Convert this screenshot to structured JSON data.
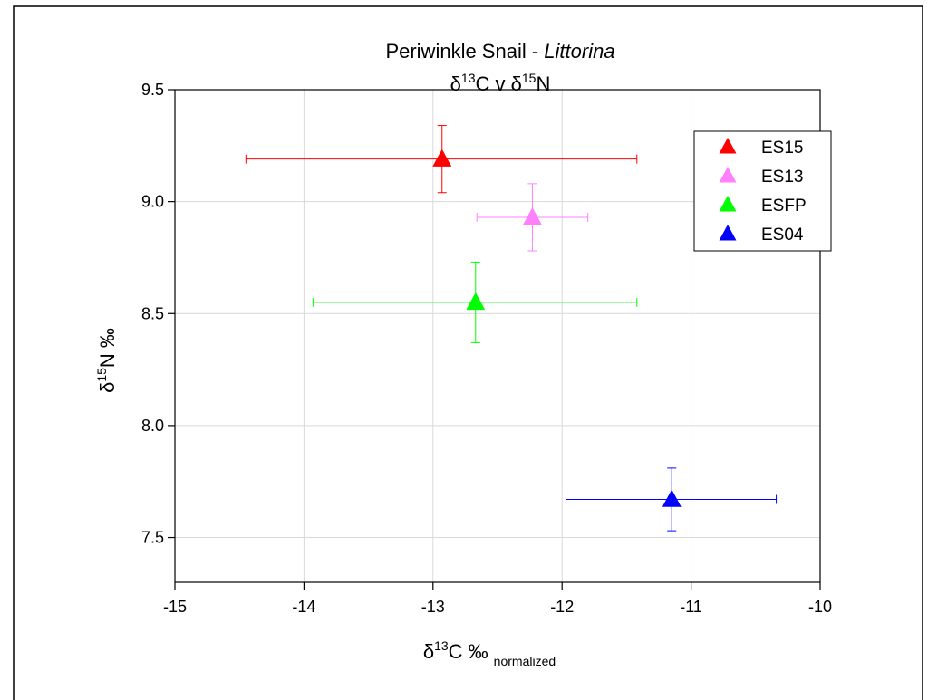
{
  "chart_data": {
    "type": "scatter",
    "title": {
      "line1_prefix": "Periwinkle Snail - ",
      "line1_italic": "Littorina",
      "line2_delta1": "δ",
      "line2_sup1": "13",
      "line2_mid": "C v ",
      "line2_delta2": "δ",
      "line2_sup2": "15",
      "line2_end": "N"
    },
    "xlabel": {
      "delta": "δ",
      "sup": "13",
      "main": "C ‰",
      "sub": "normalized"
    },
    "ylabel": {
      "delta": "δ",
      "sup": "15",
      "main": "N ‰"
    },
    "xlim": [
      -15,
      -10
    ],
    "ylim": [
      7.3,
      9.5
    ],
    "x_ticks": [
      "-15",
      "-14",
      "-13",
      "-12",
      "-11",
      "-10"
    ],
    "y_ticks": [
      "7.5",
      "8.0",
      "8.5",
      "9.0",
      "9.5"
    ],
    "grid": true,
    "legend_position": "top-right",
    "series": [
      {
        "name": "ES15",
        "color": "#ff0000",
        "x": -12.93,
        "y": 9.19,
        "x_low": -14.45,
        "x_high": -11.42,
        "y_low": 9.04,
        "y_high": 9.34
      },
      {
        "name": "ES13",
        "color": "#ff80ff",
        "x": -12.23,
        "y": 8.93,
        "x_low": -12.66,
        "x_high": -11.8,
        "y_low": 8.78,
        "y_high": 9.08
      },
      {
        "name": "ESFP",
        "color": "#00ff00",
        "x": -12.67,
        "y": 8.55,
        "x_low": -13.93,
        "x_high": -11.42,
        "y_low": 8.37,
        "y_high": 8.73
      },
      {
        "name": "ES04",
        "color": "#0000ff",
        "x": -11.15,
        "y": 7.67,
        "x_low": -11.97,
        "x_high": -10.34,
        "y_low": 7.53,
        "y_high": 7.81
      }
    ]
  }
}
